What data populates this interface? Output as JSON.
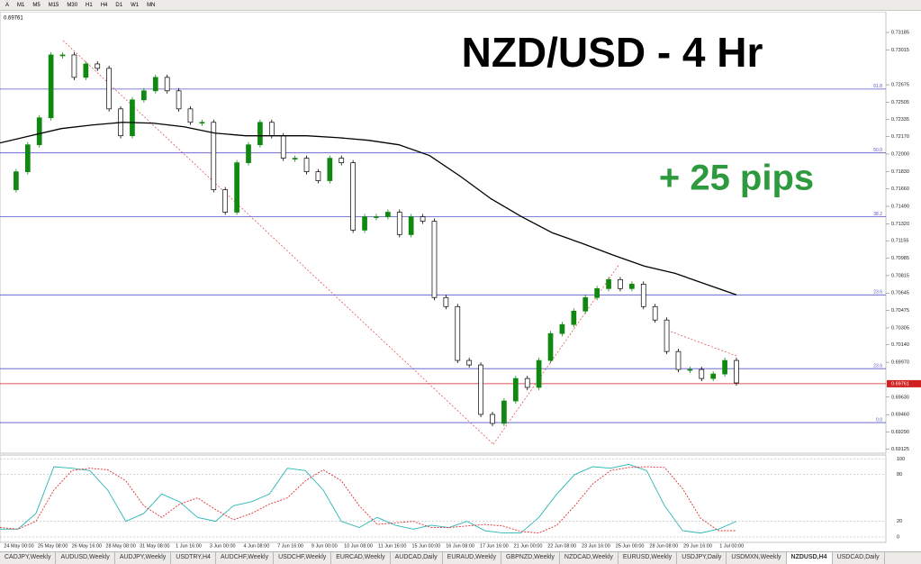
{
  "toolbar": {
    "items": [
      "A",
      "M1",
      "M5",
      "M15",
      "M30",
      "H1",
      "H4",
      "D1",
      "W1",
      "MN"
    ]
  },
  "chart_data": [
    {
      "type": "candlestick",
      "title": "NZD/USD - 4 Hr",
      "annotation": "+ 25 pips",
      "current_price": 0.69761,
      "closes": [
        0.71652,
        0.71827,
        0.7209,
        0.72353,
        0.72966,
        0.72966,
        0.72747,
        0.72878,
        0.72835,
        0.7244,
        0.72178,
        0.72528,
        0.72616,
        0.72747,
        0.72616,
        0.7244,
        0.72309,
        0.72309,
        0.71652,
        0.71433,
        0.71915,
        0.7209,
        0.72309,
        0.72178,
        0.71959,
        0.71959,
        0.71827,
        0.7174,
        0.71959,
        0.71915,
        0.71258,
        0.71389,
        0.71389,
        0.71433,
        0.71214,
        0.71389,
        0.71345,
        0.70601,
        0.70513,
        0.69988,
        0.69944,
        0.69462,
        0.69374,
        0.69593,
        0.69812,
        0.69725,
        0.69988,
        0.7025,
        0.70338,
        0.70469,
        0.70601,
        0.70688,
        0.70776,
        0.70688,
        0.70732,
        0.70513,
        0.70382,
        0.70075,
        0.699,
        0.699,
        0.69812,
        0.69856,
        0.69988,
        0.69769
      ],
      "moving_average": [
        0.72108,
        0.72178,
        0.72248,
        0.72283,
        0.72309,
        0.723,
        0.72265,
        0.72204,
        0.72178,
        0.72178,
        0.72178,
        0.7216,
        0.72134,
        0.7209,
        0.71985,
        0.71783,
        0.71564,
        0.71389,
        0.71232,
        0.71126,
        0.71013,
        0.70907,
        0.70837,
        0.70732,
        0.70627
      ],
      "fib_levels": [
        {
          "value": 0.72633,
          "label": "61.8"
        },
        {
          "value": 0.72011,
          "label": "50.0"
        },
        {
          "value": 0.71389,
          "label": "38.2"
        },
        {
          "value": 0.70627,
          "label": "23.6"
        },
        {
          "value": 0.69908,
          "label": "23.6"
        },
        {
          "value": 0.69382,
          "label": "0.0"
        }
      ],
      "x_labels": [
        "24 May 00:00",
        "25 May 08:00",
        "26 May 16:00",
        "28 May 08:00",
        "31 May 08:00",
        "1 Jun 16:00",
        "3 Jun 00:00",
        "4 Jun 08:00",
        "7 Jun 16:00",
        "9 Jun 00:00",
        "10 Jun 08:00",
        "11 Jun 16:00",
        "15 Jun 00:00",
        "16 Jun 08:00",
        "17 Jun 16:00",
        "21 Jun 00:00",
        "22 Jun 08:00",
        "23 Jun 16:00",
        "25 Jun 00:00",
        "28 Jun 08:00",
        "29 Jun 16:00",
        "1 Jul 00:00"
      ],
      "ylim": [
        0.69084,
        0.73387
      ],
      "yticks": [
        0.73185,
        0.73015,
        0.72675,
        0.72505,
        0.72335,
        {
          "value": 0.7217,
          "label": "0.72170"
        },
        {
          "value": 0.72,
          "label": "0.72000"
        },
        {
          "value": 0.7183,
          "label": "0.71830"
        },
        {
          "value": 0.7166,
          "label": "0.71660"
        },
        {
          "value": 0.7149,
          "label": "0.71490"
        },
        {
          "value": 0.7132,
          "label": "0.71320"
        },
        0.71155,
        0.70985,
        0.70815,
        0.70645,
        0.70475,
        0.70305,
        {
          "value": 0.7014,
          "label": "0.70140"
        },
        {
          "value": 0.6997,
          "label": "0.69970"
        },
        {
          "value": 0.6963,
          "label": "0.69630"
        },
        {
          "value": 0.6946,
          "label": "0.69460"
        },
        {
          "value": 0.6929,
          "label": "0.69290"
        },
        0.69125
      ]
    },
    {
      "type": "line",
      "series": [
        {
          "color": "#2bb5b5",
          "values": [
            10,
            10,
            30,
            90,
            88,
            85,
            60,
            20,
            30,
            55,
            45,
            25,
            20,
            40,
            45,
            55,
            88,
            85,
            60,
            20,
            12,
            25,
            15,
            10,
            15,
            12,
            20,
            8,
            5,
            5,
            25,
            55,
            80,
            90,
            88,
            93,
            85,
            40,
            8,
            5,
            10,
            20
          ]
        },
        {
          "color": "#e03030",
          "values": [
            12,
            10,
            20,
            60,
            85,
            88,
            86,
            72,
            40,
            25,
            42,
            50,
            35,
            22,
            30,
            42,
            50,
            72,
            86,
            72,
            40,
            16,
            18,
            20,
            12,
            12,
            14,
            16,
            14,
            7,
            5,
            15,
            40,
            68,
            85,
            89,
            90,
            89,
            62,
            24,
            8,
            8
          ]
        }
      ],
      "ylim": [
        -7,
        105
      ],
      "yticks": [
        0,
        20,
        80,
        100
      ]
    }
  ],
  "tabs": [
    "CADJPY,Weekly",
    "AUDUSD,Weekly",
    "AUDJPY,Weekly",
    "USDTRY,H4",
    "AUDCHF,Weekly",
    "USDCHF,Weekly",
    "EURCAD,Weekly",
    "AUDCAD,Daily",
    "EURAUD,Weekly",
    "GBPNZD,Weekly",
    "NZDCAD,Weekly",
    "EURUSD,Weekly",
    "USDJPY,Daily",
    "USDMXN,Weekly",
    "NZDUSD,H4",
    "USDCAD,Daily"
  ]
}
